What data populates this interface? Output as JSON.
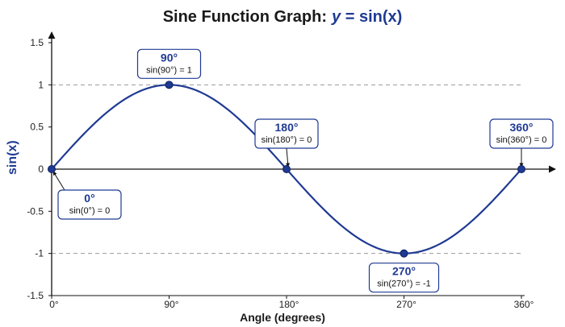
{
  "chart_data": {
    "type": "line",
    "title": "Sine Function Graph:",
    "title_equation_var": "y",
    "title_equation_rest": " = sin(x)",
    "xlabel": "Angle (degrees)",
    "ylabel": "sin(x)",
    "xlim": [
      0,
      360
    ],
    "ylim": [
      -1.5,
      1.5
    ],
    "x_ticks": [
      0,
      90,
      180,
      270,
      360
    ],
    "x_tick_labels": [
      "0°",
      "90°",
      "180°",
      "270°",
      "360°"
    ],
    "y_ticks": [
      -1.5,
      -1,
      -0.5,
      0,
      0.5,
      1,
      1.5
    ],
    "y_tick_labels": [
      "-1.5",
      "-1",
      "-0.5",
      "0",
      "0.5",
      "1",
      "1.5"
    ],
    "reference_lines_y": [
      1,
      -1
    ],
    "grid": "horizontal dashed at ±1",
    "line_color": "#1f3a93",
    "series": [
      {
        "function": "sin",
        "x": [
          0,
          15,
          30,
          45,
          60,
          75,
          90,
          105,
          120,
          135,
          150,
          165,
          180,
          195,
          210,
          225,
          240,
          255,
          270,
          285,
          300,
          315,
          330,
          345,
          360
        ],
        "y": [
          0,
          0.259,
          0.5,
          0.707,
          0.866,
          0.966,
          1,
          0.966,
          0.866,
          0.707,
          0.5,
          0.259,
          0,
          -0.259,
          -0.5,
          -0.707,
          -0.866,
          -0.966,
          -1,
          -0.966,
          -0.866,
          -0.707,
          -0.5,
          -0.259,
          0
        ]
      }
    ],
    "annotations": [
      {
        "x": 0,
        "y": 0,
        "head": "0°",
        "sub": "sin(0°) = 0",
        "placement": "below-right"
      },
      {
        "x": 90,
        "y": 1,
        "head": "90°",
        "sub": "sin(90°) = 1",
        "placement": "above"
      },
      {
        "x": 180,
        "y": 0,
        "head": "180°",
        "sub": "sin(180°) = 0",
        "placement": "above"
      },
      {
        "x": 270,
        "y": -1,
        "head": "270°",
        "sub": "sin(270°) = -1",
        "placement": "below"
      },
      {
        "x": 360,
        "y": 0,
        "head": "360°",
        "sub": "sin(360°) = 0",
        "placement": "above"
      }
    ]
  }
}
